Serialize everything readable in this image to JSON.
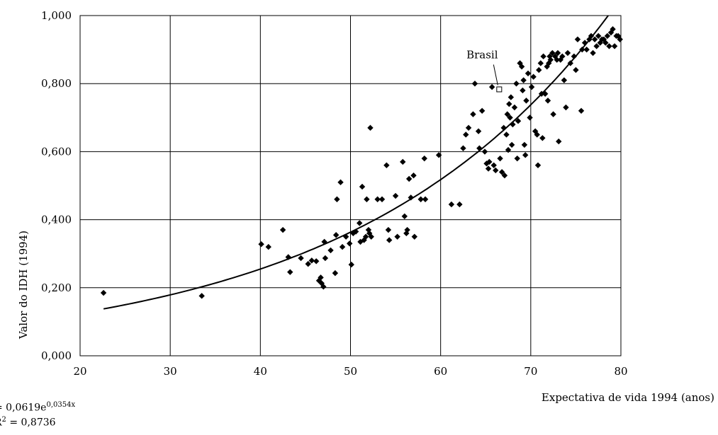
{
  "chart_data": {
    "type": "scatter",
    "title": "",
    "xlabel": "Expectativa de vida 1994 (anos)",
    "ylabel": "Valor do IDH (1994)",
    "xlim": [
      20,
      80
    ],
    "ylim": [
      0,
      1
    ],
    "x_ticks": [
      "20",
      "30",
      "40",
      "50",
      "60",
      "70",
      "80"
    ],
    "y_ticks": [
      "0,000",
      "0,200",
      "0,400",
      "0,600",
      "0,800",
      "1,000"
    ],
    "grid": true,
    "annotation": "Brasil",
    "highlight_point": {
      "x": 66.5,
      "y": 0.783
    },
    "trendline": {
      "type": "exponential",
      "a": 0.0619,
      "b": 0.0354
    },
    "equation_label": "= 0,0619e",
    "equation_exponent": "0,0354x",
    "r2_label": "R",
    "r2_exponent": "2",
    "r2_value": " = 0,8736",
    "points": [
      [
        22.6,
        0.185
      ],
      [
        33.5,
        0.176
      ],
      [
        40.1,
        0.328
      ],
      [
        40.9,
        0.32
      ],
      [
        42.5,
        0.37
      ],
      [
        43.1,
        0.29
      ],
      [
        43.3,
        0.246
      ],
      [
        44.5,
        0.287
      ],
      [
        45.3,
        0.27
      ],
      [
        45.7,
        0.28
      ],
      [
        46.2,
        0.278
      ],
      [
        46.5,
        0.221
      ],
      [
        46.7,
        0.23
      ],
      [
        46.8,
        0.213
      ],
      [
        47.0,
        0.203
      ],
      [
        47.1,
        0.335
      ],
      [
        47.2,
        0.287
      ],
      [
        47.8,
        0.31
      ],
      [
        48.3,
        0.243
      ],
      [
        48.4,
        0.355
      ],
      [
        48.5,
        0.46
      ],
      [
        48.9,
        0.51
      ],
      [
        49.1,
        0.32
      ],
      [
        49.5,
        0.35
      ],
      [
        49.9,
        0.33
      ],
      [
        50.1,
        0.268
      ],
      [
        50.3,
        0.36
      ],
      [
        50.6,
        0.365
      ],
      [
        51.0,
        0.39
      ],
      [
        51.1,
        0.335
      ],
      [
        51.3,
        0.497
      ],
      [
        51.5,
        0.34
      ],
      [
        51.7,
        0.35
      ],
      [
        51.8,
        0.46
      ],
      [
        52.0,
        0.37
      ],
      [
        52.1,
        0.36
      ],
      [
        52.2,
        0.67
      ],
      [
        52.3,
        0.35
      ],
      [
        53.0,
        0.46
      ],
      [
        53.5,
        0.46
      ],
      [
        54.0,
        0.56
      ],
      [
        54.2,
        0.37
      ],
      [
        54.3,
        0.34
      ],
      [
        55.0,
        0.47
      ],
      [
        55.2,
        0.35
      ],
      [
        55.8,
        0.57
      ],
      [
        56.0,
        0.41
      ],
      [
        56.2,
        0.36
      ],
      [
        56.3,
        0.37
      ],
      [
        56.5,
        0.52
      ],
      [
        56.7,
        0.465
      ],
      [
        57.0,
        0.53
      ],
      [
        57.1,
        0.35
      ],
      [
        57.8,
        0.46
      ],
      [
        58.2,
        0.58
      ],
      [
        58.3,
        0.46
      ],
      [
        59.8,
        0.59
      ],
      [
        61.2,
        0.445
      ],
      [
        62.1,
        0.445
      ],
      [
        62.5,
        0.61
      ],
      [
        62.8,
        0.65
      ],
      [
        63.1,
        0.67
      ],
      [
        63.6,
        0.71
      ],
      [
        63.8,
        0.8
      ],
      [
        64.2,
        0.66
      ],
      [
        64.3,
        0.61
      ],
      [
        64.6,
        0.72
      ],
      [
        64.9,
        0.6
      ],
      [
        65.1,
        0.565
      ],
      [
        65.3,
        0.55
      ],
      [
        65.4,
        0.57
      ],
      [
        65.7,
        0.79
      ],
      [
        65.9,
        0.56
      ],
      [
        66.1,
        0.545
      ],
      [
        66.6,
        0.58
      ],
      [
        66.8,
        0.54
      ],
      [
        67.0,
        0.67
      ],
      [
        67.1,
        0.53
      ],
      [
        67.3,
        0.65
      ],
      [
        67.4,
        0.71
      ],
      [
        67.5,
        0.605
      ],
      [
        67.6,
        0.74
      ],
      [
        67.7,
        0.7
      ],
      [
        67.8,
        0.76
      ],
      [
        67.9,
        0.62
      ],
      [
        68.0,
        0.68
      ],
      [
        68.2,
        0.73
      ],
      [
        68.4,
        0.8
      ],
      [
        68.5,
        0.58
      ],
      [
        68.6,
        0.69
      ],
      [
        68.8,
        0.86
      ],
      [
        69.0,
        0.85
      ],
      [
        69.1,
        0.78
      ],
      [
        69.2,
        0.81
      ],
      [
        69.3,
        0.62
      ],
      [
        69.4,
        0.59
      ],
      [
        69.5,
        0.75
      ],
      [
        69.7,
        0.83
      ],
      [
        69.9,
        0.7
      ],
      [
        70.1,
        0.79
      ],
      [
        70.3,
        0.82
      ],
      [
        70.5,
        0.66
      ],
      [
        70.7,
        0.65
      ],
      [
        70.8,
        0.56
      ],
      [
        70.9,
        0.84
      ],
      [
        71.1,
        0.86
      ],
      [
        71.2,
        0.77
      ],
      [
        71.3,
        0.64
      ],
      [
        71.4,
        0.88
      ],
      [
        71.6,
        0.77
      ],
      [
        71.8,
        0.85
      ],
      [
        71.9,
        0.75
      ],
      [
        72.0,
        0.86
      ],
      [
        72.1,
        0.88
      ],
      [
        72.2,
        0.87
      ],
      [
        72.4,
        0.89
      ],
      [
        72.5,
        0.71
      ],
      [
        72.7,
        0.88
      ],
      [
        72.9,
        0.87
      ],
      [
        73.0,
        0.89
      ],
      [
        73.1,
        0.63
      ],
      [
        73.3,
        0.87
      ],
      [
        73.5,
        0.88
      ],
      [
        73.7,
        0.81
      ],
      [
        73.9,
        0.73
      ],
      [
        74.1,
        0.89
      ],
      [
        74.4,
        0.86
      ],
      [
        74.8,
        0.88
      ],
      [
        75.0,
        0.84
      ],
      [
        75.2,
        0.93
      ],
      [
        75.6,
        0.72
      ],
      [
        75.7,
        0.9
      ],
      [
        76.0,
        0.92
      ],
      [
        76.2,
        0.9
      ],
      [
        76.5,
        0.93
      ],
      [
        76.7,
        0.94
      ],
      [
        76.9,
        0.89
      ],
      [
        77.1,
        0.93
      ],
      [
        77.3,
        0.91
      ],
      [
        77.5,
        0.94
      ],
      [
        77.7,
        0.92
      ],
      [
        77.9,
        0.93
      ],
      [
        78.1,
        0.93
      ],
      [
        78.3,
        0.92
      ],
      [
        78.5,
        0.94
      ],
      [
        78.7,
        0.91
      ],
      [
        78.9,
        0.95
      ],
      [
        79.1,
        0.96
      ],
      [
        79.3,
        0.91
      ],
      [
        79.5,
        0.94
      ],
      [
        79.7,
        0.94
      ],
      [
        79.9,
        0.93
      ]
    ]
  }
}
